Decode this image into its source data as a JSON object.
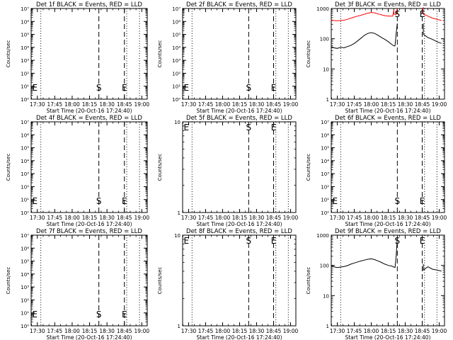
{
  "figure": {
    "description_free": true
  },
  "chart_data": [
    {
      "type": "line",
      "title": "Det 1f BLACK = Events, RED = LLD",
      "xlabel": "Start Time (20-Oct-16 17:24:40)",
      "ylabel": "Counts/sec",
      "yscale": "log",
      "ylim": [
        1,
        10000000
      ],
      "ytick_labels": [
        "10⁰",
        "10¹",
        "10²",
        "10³",
        "10⁴",
        "10⁵",
        "10⁶",
        "10⁷"
      ],
      "xlim": [
        "17:24:40",
        "19:04:40"
      ],
      "xtick_labels": [
        "17:30",
        "17:45",
        "18:00",
        "18:15",
        "18:30",
        "18:45",
        "19:00"
      ],
      "markers": [
        {
          "label": "E",
          "x": "17:25"
        },
        {
          "label": "S",
          "x": "18:23"
        },
        {
          "label": "E",
          "x": "18:45"
        }
      ],
      "dotted_lines": [
        "17:33",
        "18:47",
        "18:58"
      ],
      "dashed_lines": [
        "18:23",
        "18:45"
      ],
      "series": []
    },
    {
      "type": "line",
      "title": "Det 2f BLACK = Events, RED = LLD",
      "xlabel": "Start Time (20-Oct-16 17:24:40)",
      "ylabel": "Counts/sec",
      "yscale": "log",
      "ylim": [
        1,
        10000000
      ],
      "ytick_labels": [
        "10⁰",
        "10¹",
        "10²",
        "10³",
        "10⁴",
        "10⁵",
        "10⁶",
        "10⁷"
      ],
      "xlim": [
        "17:24:40",
        "19:04:40"
      ],
      "xtick_labels": [
        "17:30",
        "17:45",
        "18:00",
        "18:15",
        "18:30",
        "18:45",
        "19:00"
      ],
      "markers": [
        {
          "label": "E",
          "x": "17:25"
        },
        {
          "label": "S",
          "x": "18:23"
        },
        {
          "label": "E",
          "x": "18:45"
        }
      ],
      "dotted_lines": [
        "17:33",
        "18:47",
        "18:58"
      ],
      "dashed_lines": [
        "18:23",
        "18:45"
      ],
      "series": []
    },
    {
      "type": "line",
      "title": "Det 3f BLACK = Events, RED = LLD",
      "xlabel": "Start Time (20-Oct-16 17:24:40)",
      "ylabel": "Counts/sec",
      "yscale": "log",
      "ylim": [
        1,
        1000
      ],
      "ytick_labels": [
        "1",
        "10",
        "100",
        "1000"
      ],
      "xlim": [
        "17:24:40",
        "19:04:40"
      ],
      "xtick_labels": [
        "17:30",
        "17:45",
        "18:00",
        "18:15",
        "18:30",
        "18:45",
        "19:00"
      ],
      "markers": [
        {
          "label": "S",
          "x": "18:23"
        },
        {
          "label": "E",
          "x": "18:45"
        }
      ],
      "dotted_lines": [
        "17:33",
        "18:47",
        "18:58"
      ],
      "dashed_lines": [
        "18:23",
        "18:45"
      ],
      "series": [
        {
          "color": "#ff0000",
          "segments": [
            {
              "x": [
                "17:24:40",
                "17:27",
                "17:30",
                "17:33",
                "17:36",
                "17:39",
                "17:42",
                "17:45",
                "17:48",
                "17:51",
                "17:54",
                "17:57",
                "18:00",
                "18:03",
                "18:06",
                "18:09",
                "18:12",
                "18:15",
                "18:17",
                "18:19",
                "18:20",
                "18:20",
                "18:22",
                "18:23"
              ],
              "y": [
                420,
                400,
                395,
                400,
                410,
                440,
                480,
                520,
                560,
                600,
                650,
                700,
                740,
                720,
                660,
                620,
                580,
                560,
                560,
                560,
                900,
                650,
                640,
                1000
              ]
            },
            {
              "x": [
                "18:46",
                "18:46",
                "18:50",
                "18:54",
                "18:58",
                "19:02"
              ],
              "y": [
                1100,
                650,
                560,
                480,
                440,
                400
              ]
            }
          ]
        },
        {
          "color": "#000000",
          "segments": [
            {
              "x": [
                "17:24:40",
                "17:27",
                "17:30",
                "17:33",
                "17:36",
                "17:39",
                "17:42",
                "17:45",
                "17:48",
                "17:51",
                "17:54",
                "17:57",
                "18:00",
                "18:03",
                "18:06",
                "18:09",
                "18:12",
                "18:15",
                "18:18",
                "18:20",
                "18:21",
                "18:22",
                "18:23"
              ],
              "y": [
                55,
                50,
                48,
                52,
                50,
                55,
                60,
                70,
                85,
                105,
                130,
                150,
                160,
                150,
                130,
                110,
                95,
                80,
                65,
                58,
                58,
                150,
                320
              ]
            },
            {
              "x": [
                "18:46",
                "18:46",
                "18:50",
                "18:54",
                "18:58",
                "19:02"
              ],
              "y": [
                320,
                140,
                110,
                95,
                80,
                70
              ]
            }
          ]
        }
      ]
    },
    {
      "type": "line",
      "title": "Det 4f BLACK = Events, RED = LLD",
      "xlabel": "Start Time (20-Oct-16 17:24:40)",
      "ylabel": "Counts/sec",
      "yscale": "log",
      "ylim": [
        1,
        10000000
      ],
      "ytick_labels": [
        "10⁰",
        "10¹",
        "10²",
        "10³",
        "10⁴",
        "10⁵",
        "10⁶",
        "10⁷"
      ],
      "xlim": [
        "17:24:40",
        "19:04:40"
      ],
      "xtick_labels": [
        "17:30",
        "17:45",
        "18:00",
        "18:15",
        "18:30",
        "18:45",
        "19:00"
      ],
      "markers": [
        {
          "label": "E",
          "x": "17:25"
        },
        {
          "label": "S",
          "x": "18:23"
        },
        {
          "label": "E",
          "x": "18:45"
        }
      ],
      "dotted_lines": [
        "17:33",
        "18:47",
        "18:58"
      ],
      "dashed_lines": [
        "18:23",
        "18:45"
      ],
      "series": []
    },
    {
      "type": "line",
      "title": "Det 5f BLACK = Events, RED = LLD",
      "xlabel": "Start Time (20-Oct-16 17:24:40)",
      "ylabel": "Counts/sec",
      "yscale": "log",
      "ylim": [
        1,
        10
      ],
      "ytick_labels": [
        "1",
        "10"
      ],
      "xlim": [
        "17:24:40",
        "19:04:40"
      ],
      "xtick_labels": [
        "17:30",
        "17:45",
        "18:00",
        "18:15",
        "18:30",
        "18:45",
        "19:00"
      ],
      "markers": [
        {
          "label": "E",
          "x": "17:25"
        },
        {
          "label": "S",
          "x": "18:23"
        },
        {
          "label": "E",
          "x": "18:45"
        }
      ],
      "dotted_lines": [
        "17:33",
        "18:47",
        "18:58"
      ],
      "dashed_lines": [
        "18:23",
        "18:45"
      ],
      "series": []
    },
    {
      "type": "line",
      "title": "Det 6f BLACK = Events, RED = LLD",
      "xlabel": "Start Time (20-Oct-16 17:24:40)",
      "ylabel": "Counts/sec",
      "yscale": "log",
      "ylim": [
        1,
        10000000
      ],
      "ytick_labels": [
        "10⁰",
        "10¹",
        "10²",
        "10³",
        "10⁴",
        "10⁵",
        "10⁶",
        "10⁷"
      ],
      "xlim": [
        "17:24:40",
        "19:04:40"
      ],
      "xtick_labels": [
        "17:30",
        "17:45",
        "18:00",
        "18:15",
        "18:30",
        "18:45",
        "19:00"
      ],
      "markers": [
        {
          "label": "E",
          "x": "17:25"
        },
        {
          "label": "S",
          "x": "18:23"
        },
        {
          "label": "E",
          "x": "18:45"
        }
      ],
      "dotted_lines": [
        "17:33",
        "18:47",
        "18:58"
      ],
      "dashed_lines": [
        "18:23",
        "18:45"
      ],
      "series": []
    },
    {
      "type": "line",
      "title": "Det 7f BLACK = Events, RED = LLD",
      "xlabel": "Start Time (20-Oct-16 17:24:40)",
      "ylabel": "Counts/sec",
      "yscale": "log",
      "ylim": [
        1,
        10000000
      ],
      "ytick_labels": [
        "10⁰",
        "10¹",
        "10²",
        "10³",
        "10⁴",
        "10⁵",
        "10⁶",
        "10⁷"
      ],
      "xlim": [
        "17:24:40",
        "19:04:40"
      ],
      "xtick_labels": [
        "17:30",
        "17:45",
        "18:00",
        "18:15",
        "18:30",
        "18:45",
        "19:00"
      ],
      "markers": [
        {
          "label": "E",
          "x": "17:25"
        },
        {
          "label": "S",
          "x": "18:23"
        },
        {
          "label": "E",
          "x": "18:45"
        }
      ],
      "dotted_lines": [
        "17:33",
        "18:47",
        "18:58"
      ],
      "dashed_lines": [
        "18:23",
        "18:45"
      ],
      "series": []
    },
    {
      "type": "line",
      "title": "Det 8f BLACK = Events, RED = LLD",
      "xlabel": "Start Time (20-Oct-16 17:24:40)",
      "ylabel": "Counts/sec",
      "yscale": "log",
      "ylim": [
        1,
        10
      ],
      "ytick_labels": [
        "1",
        "10"
      ],
      "xlim": [
        "17:24:40",
        "19:04:40"
      ],
      "xtick_labels": [
        "17:30",
        "17:45",
        "18:00",
        "18:15",
        "18:30",
        "18:45",
        "19:00"
      ],
      "markers": [
        {
          "label": "E",
          "x": "17:25"
        },
        {
          "label": "S",
          "x": "18:23"
        },
        {
          "label": "E",
          "x": "18:45"
        }
      ],
      "dotted_lines": [
        "17:33",
        "18:47",
        "18:58"
      ],
      "dashed_lines": [
        "18:23",
        "18:45"
      ],
      "series": []
    },
    {
      "type": "line",
      "title": "Det 9f BLACK = Events, RED = LLD",
      "xlabel": "Start Time (20-Oct-16 17:24:40)",
      "ylabel": "Counts/sec",
      "yscale": "log",
      "ylim": [
        1,
        1000
      ],
      "ytick_labels": [
        "1",
        "10",
        "100",
        "1000"
      ],
      "xlim": [
        "17:24:40",
        "19:04:40"
      ],
      "xtick_labels": [
        "17:30",
        "17:45",
        "18:00",
        "18:15",
        "18:30",
        "18:45",
        "19:00"
      ],
      "markers": [
        {
          "label": "S",
          "x": "18:23"
        },
        {
          "label": "E",
          "x": "18:45"
        }
      ],
      "dotted_lines": [
        "17:33",
        "18:47",
        "18:58"
      ],
      "dashed_lines": [
        "18:23",
        "18:45"
      ],
      "series": [
        {
          "color": "#000000",
          "segments": [
            {
              "x": [
                "17:24:40",
                "17:27",
                "17:30",
                "17:33",
                "17:36",
                "17:39",
                "17:42",
                "17:45",
                "17:48",
                "17:51",
                "17:54",
                "17:57",
                "18:00",
                "18:03",
                "18:06",
                "18:09",
                "18:12",
                "18:15",
                "18:18",
                "18:20",
                "18:21",
                "18:22",
                "18:23"
              ],
              "y": [
                100,
                90,
                85,
                88,
                92,
                98,
                110,
                120,
                130,
                140,
                150,
                160,
                165,
                155,
                140,
                125,
                110,
                100,
                95,
                88,
                85,
                200,
                800
              ]
            },
            {
              "x": [
                "18:46",
                "18:46",
                "18:50",
                "18:54",
                "18:58",
                "19:02"
              ],
              "y": [
                110,
                70,
                90,
                75,
                70,
                65
              ]
            }
          ]
        }
      ]
    }
  ]
}
